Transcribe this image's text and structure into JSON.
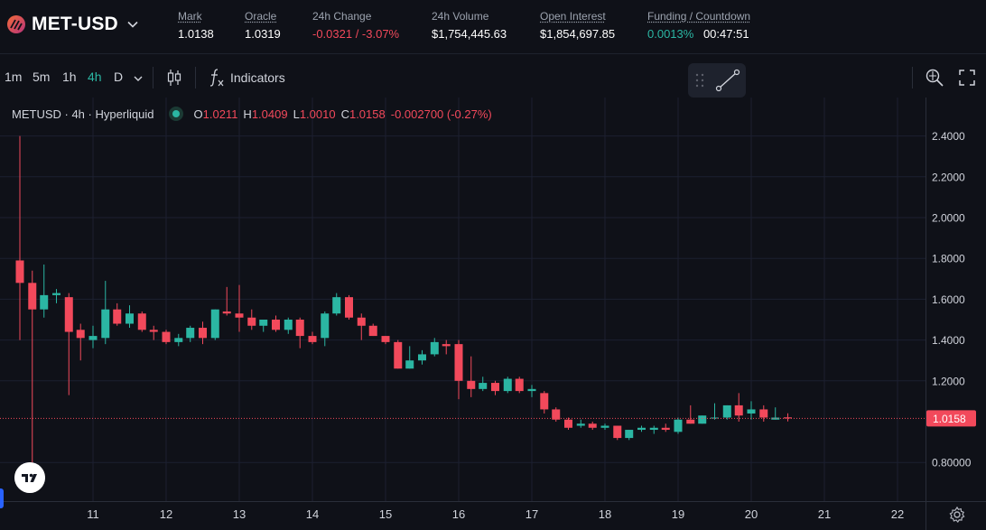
{
  "header": {
    "pair": "MET-USD",
    "stats": [
      {
        "label": "Mark",
        "value": "1.0138",
        "underlined": true
      },
      {
        "label": "Oracle",
        "value": "1.0319",
        "underlined": true
      },
      {
        "label": "24h Change",
        "value": "-0.0321 / -3.07%",
        "underlined": false
      },
      {
        "label": "24h Volume",
        "value": "$1,754,445.63",
        "underlined": false
      },
      {
        "label": "Open Interest",
        "value": "$1,854,697.85",
        "underlined": true
      },
      {
        "label": "Funding / Countdown",
        "funding": "0.0013%",
        "countdown": "00:47:51",
        "underlined": true
      }
    ]
  },
  "toolbar": {
    "timeframes": [
      "1m",
      "5m",
      "1h",
      "4h",
      "D"
    ],
    "active_timeframe": "4h",
    "indicators_label": "Indicators"
  },
  "legend": {
    "symbol": "METUSD · 4h · Hyperliquid",
    "o_label": "O",
    "o_value": "1.0211",
    "h_label": "H",
    "h_value": "1.0409",
    "l_label": "L",
    "l_value": "1.0010",
    "c_label": "C",
    "c_value": "1.0158",
    "change": "-0.002700 (-0.27%)"
  },
  "colors": {
    "up": "#2bb6a3",
    "down": "#f2495b",
    "background": "#0f1118",
    "grid": "#1c2030",
    "axis_text": "#d1d4dc"
  },
  "chart_data": {
    "type": "candlestick",
    "title": "METUSD · 4h · Hyperliquid",
    "ylim": [
      0.64,
      2.6
    ],
    "y_ticks": [
      2.4,
      2.2,
      2.0,
      1.8,
      1.6,
      1.4,
      1.2,
      0.8
    ],
    "y_tick_labels": [
      "2.4000",
      "2.2000",
      "2.0000",
      "1.8000",
      "1.6000",
      "1.4000",
      "1.2000",
      "0.80000"
    ],
    "x_ticks": [
      11,
      12,
      13,
      14,
      15,
      16,
      17,
      18,
      19,
      20,
      21,
      22
    ],
    "x_tick_labels": [
      "11",
      "12",
      "13",
      "14",
      "15",
      "16",
      "17",
      "18",
      "19",
      "20",
      "21",
      "22"
    ],
    "x_unit": "day",
    "current_price": 1.0158,
    "current_price_label": "1.0158",
    "candles": [
      {
        "t": 10.0,
        "o": 1.79,
        "h": 2.4,
        "l": 1.4,
        "c": 1.68
      },
      {
        "t": 10.17,
        "o": 1.68,
        "h": 1.74,
        "l": 0.8,
        "c": 1.55
      },
      {
        "t": 10.33,
        "o": 1.55,
        "h": 1.77,
        "l": 1.51,
        "c": 1.62
      },
      {
        "t": 10.5,
        "o": 1.62,
        "h": 1.65,
        "l": 1.58,
        "c": 1.63
      },
      {
        "t": 10.67,
        "o": 1.61,
        "h": 1.63,
        "l": 1.13,
        "c": 1.44
      },
      {
        "t": 10.83,
        "o": 1.45,
        "h": 1.48,
        "l": 1.3,
        "c": 1.41
      },
      {
        "t": 11.0,
        "o": 1.4,
        "h": 1.47,
        "l": 1.36,
        "c": 1.42
      },
      {
        "t": 11.17,
        "o": 1.41,
        "h": 1.69,
        "l": 1.38,
        "c": 1.55
      },
      {
        "t": 11.33,
        "o": 1.55,
        "h": 1.58,
        "l": 1.47,
        "c": 1.48
      },
      {
        "t": 11.5,
        "o": 1.48,
        "h": 1.57,
        "l": 1.46,
        "c": 1.53
      },
      {
        "t": 11.67,
        "o": 1.53,
        "h": 1.54,
        "l": 1.44,
        "c": 1.45
      },
      {
        "t": 11.83,
        "o": 1.45,
        "h": 1.47,
        "l": 1.4,
        "c": 1.44
      },
      {
        "t": 12.0,
        "o": 1.44,
        "h": 1.45,
        "l": 1.38,
        "c": 1.39
      },
      {
        "t": 12.17,
        "o": 1.39,
        "h": 1.43,
        "l": 1.37,
        "c": 1.41
      },
      {
        "t": 12.33,
        "o": 1.41,
        "h": 1.47,
        "l": 1.39,
        "c": 1.46
      },
      {
        "t": 12.5,
        "o": 1.46,
        "h": 1.49,
        "l": 1.38,
        "c": 1.41
      },
      {
        "t": 12.67,
        "o": 1.41,
        "h": 1.55,
        "l": 1.4,
        "c": 1.55
      },
      {
        "t": 12.83,
        "o": 1.54,
        "h": 1.66,
        "l": 1.52,
        "c": 1.53
      },
      {
        "t": 13.0,
        "o": 1.53,
        "h": 1.67,
        "l": 1.44,
        "c": 1.51
      },
      {
        "t": 13.17,
        "o": 1.51,
        "h": 1.55,
        "l": 1.45,
        "c": 1.47
      },
      {
        "t": 13.33,
        "o": 1.47,
        "h": 1.5,
        "l": 1.44,
        "c": 1.5
      },
      {
        "t": 13.5,
        "o": 1.5,
        "h": 1.52,
        "l": 1.44,
        "c": 1.45
      },
      {
        "t": 13.67,
        "o": 1.45,
        "h": 1.51,
        "l": 1.43,
        "c": 1.5
      },
      {
        "t": 13.83,
        "o": 1.5,
        "h": 1.51,
        "l": 1.36,
        "c": 1.42
      },
      {
        "t": 14.0,
        "o": 1.42,
        "h": 1.44,
        "l": 1.38,
        "c": 1.39
      },
      {
        "t": 14.17,
        "o": 1.41,
        "h": 1.54,
        "l": 1.37,
        "c": 1.53
      },
      {
        "t": 14.33,
        "o": 1.53,
        "h": 1.63,
        "l": 1.52,
        "c": 1.61
      },
      {
        "t": 14.5,
        "o": 1.61,
        "h": 1.62,
        "l": 1.5,
        "c": 1.51
      },
      {
        "t": 14.67,
        "o": 1.51,
        "h": 1.53,
        "l": 1.4,
        "c": 1.47
      },
      {
        "t": 14.83,
        "o": 1.47,
        "h": 1.48,
        "l": 1.42,
        "c": 1.42
      },
      {
        "t": 15.0,
        "o": 1.42,
        "h": 1.42,
        "l": 1.38,
        "c": 1.39
      },
      {
        "t": 15.17,
        "o": 1.39,
        "h": 1.4,
        "l": 1.26,
        "c": 1.26
      },
      {
        "t": 15.33,
        "o": 1.26,
        "h": 1.37,
        "l": 1.26,
        "c": 1.3
      },
      {
        "t": 15.5,
        "o": 1.3,
        "h": 1.35,
        "l": 1.28,
        "c": 1.33
      },
      {
        "t": 15.67,
        "o": 1.33,
        "h": 1.41,
        "l": 1.32,
        "c": 1.39
      },
      {
        "t": 15.83,
        "o": 1.38,
        "h": 1.4,
        "l": 1.33,
        "c": 1.37
      },
      {
        "t": 16.0,
        "o": 1.38,
        "h": 1.4,
        "l": 1.11,
        "c": 1.2
      },
      {
        "t": 16.17,
        "o": 1.2,
        "h": 1.32,
        "l": 1.12,
        "c": 1.16
      },
      {
        "t": 16.33,
        "o": 1.16,
        "h": 1.22,
        "l": 1.15,
        "c": 1.19
      },
      {
        "t": 16.5,
        "o": 1.19,
        "h": 1.2,
        "l": 1.13,
        "c": 1.15
      },
      {
        "t": 16.67,
        "o": 1.15,
        "h": 1.22,
        "l": 1.14,
        "c": 1.21
      },
      {
        "t": 16.83,
        "o": 1.21,
        "h": 1.22,
        "l": 1.14,
        "c": 1.15
      },
      {
        "t": 17.0,
        "o": 1.15,
        "h": 1.18,
        "l": 1.12,
        "c": 1.16
      },
      {
        "t": 17.17,
        "o": 1.14,
        "h": 1.15,
        "l": 1.04,
        "c": 1.06
      },
      {
        "t": 17.33,
        "o": 1.06,
        "h": 1.07,
        "l": 1.0,
        "c": 1.01
      },
      {
        "t": 17.5,
        "o": 1.01,
        "h": 1.02,
        "l": 0.96,
        "c": 0.97
      },
      {
        "t": 17.67,
        "o": 0.98,
        "h": 1.01,
        "l": 0.97,
        "c": 0.99
      },
      {
        "t": 17.83,
        "o": 0.99,
        "h": 1.0,
        "l": 0.96,
        "c": 0.97
      },
      {
        "t": 18.0,
        "o": 0.97,
        "h": 0.99,
        "l": 0.96,
        "c": 0.98
      },
      {
        "t": 18.17,
        "o": 0.98,
        "h": 0.98,
        "l": 0.91,
        "c": 0.92
      },
      {
        "t": 18.33,
        "o": 0.92,
        "h": 0.96,
        "l": 0.91,
        "c": 0.96
      },
      {
        "t": 18.5,
        "o": 0.96,
        "h": 0.98,
        "l": 0.95,
        "c": 0.97
      },
      {
        "t": 18.67,
        "o": 0.96,
        "h": 0.98,
        "l": 0.94,
        "c": 0.97
      },
      {
        "t": 18.83,
        "o": 0.97,
        "h": 0.99,
        "l": 0.95,
        "c": 0.96
      },
      {
        "t": 19.0,
        "o": 0.95,
        "h": 1.02,
        "l": 0.94,
        "c": 1.01
      },
      {
        "t": 19.17,
        "o": 1.01,
        "h": 1.08,
        "l": 0.99,
        "c": 0.99
      },
      {
        "t": 19.33,
        "o": 0.99,
        "h": 1.03,
        "l": 0.99,
        "c": 1.03
      },
      {
        "t": 19.5,
        "o": 1.02,
        "h": 1.09,
        "l": 1.01,
        "c": 1.02
      },
      {
        "t": 19.67,
        "o": 1.02,
        "h": 1.08,
        "l": 1.01,
        "c": 1.08
      },
      {
        "t": 19.83,
        "o": 1.08,
        "h": 1.14,
        "l": 1.0,
        "c": 1.03
      },
      {
        "t": 20.0,
        "o": 1.04,
        "h": 1.1,
        "l": 1.01,
        "c": 1.06
      },
      {
        "t": 20.17,
        "o": 1.06,
        "h": 1.08,
        "l": 1.0,
        "c": 1.02
      },
      {
        "t": 20.33,
        "o": 1.01,
        "h": 1.07,
        "l": 1.01,
        "c": 1.02
      },
      {
        "t": 20.5,
        "o": 1.021,
        "h": 1.041,
        "l": 1.001,
        "c": 1.0158
      }
    ]
  }
}
